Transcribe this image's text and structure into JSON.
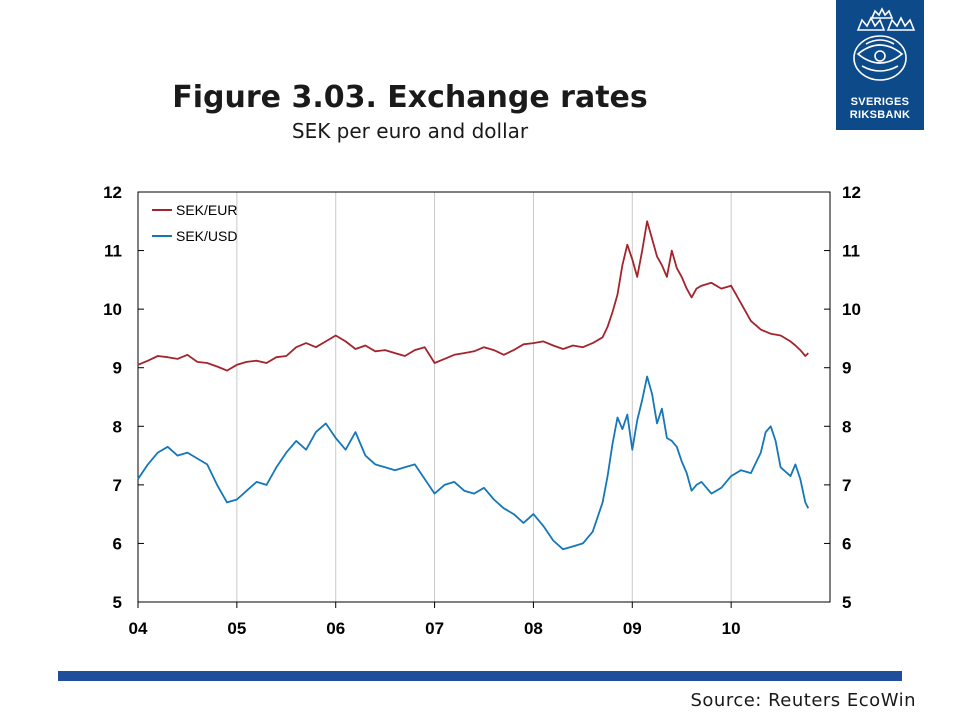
{
  "header": {
    "title": "Figure 3.03. Exchange rates",
    "subtitle": "SEK per euro and dollar"
  },
  "logo": {
    "line1": "SVERIGES",
    "line2": "RIKSBANK",
    "color": "#0c4a8a"
  },
  "source": "Source: Reuters EcoWin",
  "chart_data": {
    "type": "line",
    "title": "Figure 3.03. Exchange rates",
    "subtitle": "SEK per euro and dollar",
    "xlabel": "",
    "ylabel": "",
    "x_ticks": [
      "04",
      "05",
      "06",
      "07",
      "08",
      "09",
      "10"
    ],
    "xlim": [
      2004.0,
      2011.0
    ],
    "ylim": [
      5,
      12
    ],
    "y_ticks": [
      5,
      6,
      7,
      8,
      9,
      10,
      11,
      12
    ],
    "grid": "vertical",
    "legend": "top-left",
    "series": [
      {
        "name": "SEK/EUR",
        "color": "#a3242c",
        "x": [
          2004.0,
          2004.1,
          2004.2,
          2004.3,
          2004.4,
          2004.5,
          2004.6,
          2004.7,
          2004.8,
          2004.9,
          2005.0,
          2005.1,
          2005.2,
          2005.3,
          2005.4,
          2005.5,
          2005.6,
          2005.7,
          2005.8,
          2005.9,
          2006.0,
          2006.1,
          2006.2,
          2006.3,
          2006.4,
          2006.5,
          2006.6,
          2006.7,
          2006.8,
          2006.9,
          2007.0,
          2007.1,
          2007.2,
          2007.3,
          2007.4,
          2007.5,
          2007.6,
          2007.7,
          2007.8,
          2007.9,
          2008.0,
          2008.1,
          2008.2,
          2008.3,
          2008.4,
          2008.5,
          2008.6,
          2008.7,
          2008.75,
          2008.8,
          2008.85,
          2008.9,
          2008.95,
          2009.0,
          2009.05,
          2009.1,
          2009.15,
          2009.2,
          2009.25,
          2009.3,
          2009.35,
          2009.4,
          2009.45,
          2009.5,
          2009.55,
          2009.6,
          2009.65,
          2009.7,
          2009.8,
          2009.9,
          2010.0,
          2010.1,
          2010.2,
          2010.3,
          2010.4,
          2010.5,
          2010.6,
          2010.65,
          2010.7,
          2010.75,
          2010.78
        ],
        "values": [
          9.05,
          9.12,
          9.2,
          9.18,
          9.15,
          9.22,
          9.1,
          9.08,
          9.02,
          8.95,
          9.05,
          9.1,
          9.12,
          9.08,
          9.18,
          9.2,
          9.35,
          9.42,
          9.35,
          9.45,
          9.55,
          9.45,
          9.32,
          9.38,
          9.28,
          9.3,
          9.25,
          9.2,
          9.3,
          9.35,
          9.08,
          9.15,
          9.22,
          9.25,
          9.28,
          9.35,
          9.3,
          9.22,
          9.3,
          9.4,
          9.42,
          9.45,
          9.38,
          9.32,
          9.38,
          9.35,
          9.42,
          9.52,
          9.7,
          9.95,
          10.25,
          10.75,
          11.1,
          10.85,
          10.55,
          11.0,
          11.5,
          11.2,
          10.9,
          10.75,
          10.55,
          11.0,
          10.7,
          10.55,
          10.35,
          10.2,
          10.35,
          10.4,
          10.45,
          10.35,
          10.4,
          10.1,
          9.8,
          9.65,
          9.58,
          9.55,
          9.45,
          9.38,
          9.3,
          9.2,
          9.25
        ]
      },
      {
        "name": "SEK/USD",
        "color": "#1577b8",
        "x": [
          2004.0,
          2004.1,
          2004.2,
          2004.3,
          2004.4,
          2004.5,
          2004.6,
          2004.7,
          2004.8,
          2004.9,
          2005.0,
          2005.1,
          2005.2,
          2005.3,
          2005.4,
          2005.5,
          2005.6,
          2005.7,
          2005.8,
          2005.9,
          2006.0,
          2006.1,
          2006.2,
          2006.3,
          2006.4,
          2006.5,
          2006.6,
          2006.7,
          2006.8,
          2006.9,
          2007.0,
          2007.1,
          2007.2,
          2007.3,
          2007.4,
          2007.5,
          2007.6,
          2007.7,
          2007.8,
          2007.9,
          2008.0,
          2008.1,
          2008.2,
          2008.3,
          2008.4,
          2008.5,
          2008.6,
          2008.7,
          2008.75,
          2008.8,
          2008.85,
          2008.9,
          2008.95,
          2009.0,
          2009.05,
          2009.1,
          2009.15,
          2009.2,
          2009.25,
          2009.3,
          2009.35,
          2009.4,
          2009.45,
          2009.5,
          2009.55,
          2009.6,
          2009.65,
          2009.7,
          2009.8,
          2009.9,
          2010.0,
          2010.1,
          2010.2,
          2010.3,
          2010.35,
          2010.4,
          2010.45,
          2010.5,
          2010.6,
          2010.65,
          2010.7,
          2010.75,
          2010.78
        ],
        "values": [
          7.1,
          7.35,
          7.55,
          7.65,
          7.5,
          7.55,
          7.45,
          7.35,
          7.0,
          6.7,
          6.75,
          6.9,
          7.05,
          7.0,
          7.3,
          7.55,
          7.75,
          7.6,
          7.9,
          8.05,
          7.8,
          7.6,
          7.9,
          7.5,
          7.35,
          7.3,
          7.25,
          7.3,
          7.35,
          7.1,
          6.85,
          7.0,
          7.05,
          6.9,
          6.85,
          6.95,
          6.75,
          6.6,
          6.5,
          6.35,
          6.5,
          6.3,
          6.05,
          5.9,
          5.95,
          6.0,
          6.2,
          6.7,
          7.15,
          7.7,
          8.15,
          7.95,
          8.2,
          7.6,
          8.1,
          8.45,
          8.85,
          8.55,
          8.05,
          8.3,
          7.8,
          7.75,
          7.65,
          7.4,
          7.2,
          6.9,
          7.0,
          7.05,
          6.85,
          6.95,
          7.15,
          7.25,
          7.2,
          7.55,
          7.9,
          8.0,
          7.75,
          7.3,
          7.15,
          7.35,
          7.1,
          6.7,
          6.6
        ]
      }
    ]
  }
}
